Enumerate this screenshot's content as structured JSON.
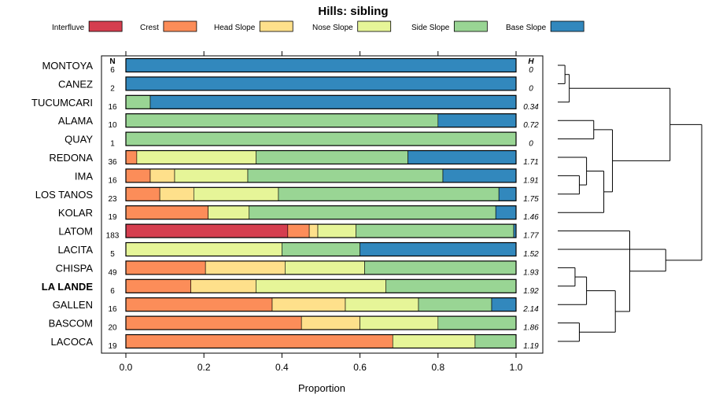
{
  "chart_data": {
    "type": "stacked-bar",
    "title": "Hills: sibling",
    "xlabel": "Proportion",
    "xlim": [
      0,
      1
    ],
    "xticks": [
      "0.0",
      "0.2",
      "0.4",
      "0.6",
      "0.8",
      "1.0"
    ],
    "n_header": "N",
    "h_header": "H",
    "legend": [
      {
        "label": "Interfluve",
        "color": "#D53E4F"
      },
      {
        "label": "Crest",
        "color": "#FC8D59"
      },
      {
        "label": "Head Slope",
        "color": "#FEE08B"
      },
      {
        "label": "Nose Slope",
        "color": "#E6F598"
      },
      {
        "label": "Side Slope",
        "color": "#99D594"
      },
      {
        "label": "Base Slope",
        "color": "#3288BD"
      }
    ],
    "rows": [
      {
        "name": "MONTOYA",
        "n": "6",
        "h": "0",
        "bold": false,
        "values": [
          0,
          0,
          0,
          0,
          0,
          1.0
        ]
      },
      {
        "name": "CANEZ",
        "n": "2",
        "h": "0",
        "bold": false,
        "values": [
          0,
          0,
          0,
          0,
          0,
          1.0
        ]
      },
      {
        "name": "TUCUMCARI",
        "n": "16",
        "h": "0.34",
        "bold": false,
        "values": [
          0,
          0,
          0,
          0,
          0.0625,
          0.9375
        ]
      },
      {
        "name": "ALAMA",
        "n": "10",
        "h": "0.72",
        "bold": false,
        "values": [
          0,
          0,
          0,
          0,
          0.8,
          0.2
        ]
      },
      {
        "name": "QUAY",
        "n": "1",
        "h": "0",
        "bold": false,
        "values": [
          0,
          0,
          0,
          0,
          1.0,
          0
        ]
      },
      {
        "name": "REDONA",
        "n": "36",
        "h": "1.71",
        "bold": false,
        "values": [
          0,
          0.028,
          0,
          0.306,
          0.389,
          0.277
        ]
      },
      {
        "name": "IMA",
        "n": "16",
        "h": "1.91",
        "bold": false,
        "values": [
          0,
          0.0625,
          0.0625,
          0.1875,
          0.5,
          0.1875
        ]
      },
      {
        "name": "LOS TANOS",
        "n": "23",
        "h": "1.75",
        "bold": false,
        "values": [
          0,
          0.087,
          0.087,
          0.217,
          0.565,
          0.044
        ]
      },
      {
        "name": "KOLAR",
        "n": "19",
        "h": "1.46",
        "bold": false,
        "values": [
          0,
          0.211,
          0,
          0.105,
          0.632,
          0.052
        ]
      },
      {
        "name": "LATOM",
        "n": "183",
        "h": "1.77",
        "bold": false,
        "values": [
          0.415,
          0.055,
          0.022,
          0.098,
          0.404,
          0.006
        ]
      },
      {
        "name": "LACITA",
        "n": "5",
        "h": "1.52",
        "bold": false,
        "values": [
          0,
          0,
          0,
          0.4,
          0.2,
          0.4
        ]
      },
      {
        "name": "CHISPA",
        "n": "49",
        "h": "1.93",
        "bold": false,
        "values": [
          0,
          0.204,
          0.204,
          0.204,
          0.388,
          0
        ]
      },
      {
        "name": "LA LANDE",
        "n": "6",
        "h": "1.92",
        "bold": true,
        "values": [
          0,
          0.1667,
          0.1667,
          0.3333,
          0.3333,
          0
        ]
      },
      {
        "name": "GALLEN",
        "n": "16",
        "h": "2.14",
        "bold": false,
        "values": [
          0,
          0.375,
          0.1875,
          0.1875,
          0.1875,
          0.0625
        ]
      },
      {
        "name": "BASCOM",
        "n": "20",
        "h": "1.86",
        "bold": false,
        "values": [
          0,
          0.45,
          0.15,
          0.2,
          0.2,
          0
        ]
      },
      {
        "name": "LACOCA",
        "n": "19",
        "h": "1.19",
        "bold": false,
        "values": [
          0,
          0.684,
          0,
          0.211,
          0.105,
          0
        ]
      }
    ],
    "dendrogram": [
      {
        "a": 0,
        "b": 1,
        "h": 0.05
      },
      {
        "a": 16,
        "b": 2,
        "h": 0.08
      },
      {
        "a": 3,
        "b": 4,
        "h": 0.25
      },
      {
        "a": 7,
        "b": 6,
        "h": 0.15
      },
      {
        "a": 19,
        "b": 5,
        "h": 0.2
      },
      {
        "a": 20,
        "b": 8,
        "h": 0.32
      },
      {
        "a": 18,
        "b": 21,
        "h": 0.38
      },
      {
        "a": 17,
        "b": 22,
        "h": 0.78
      },
      {
        "a": 12,
        "b": 11,
        "h": 0.12
      },
      {
        "a": 24,
        "b": 13,
        "h": 0.2
      },
      {
        "a": 14,
        "b": 15,
        "h": 0.15
      },
      {
        "a": 25,
        "b": 26,
        "h": 0.4
      },
      {
        "a": 27,
        "b": 9,
        "h": 0.5
      },
      {
        "a": 28,
        "b": 10,
        "h": 0.75
      },
      {
        "a": 23,
        "b": 29,
        "h": 1.0
      }
    ]
  }
}
